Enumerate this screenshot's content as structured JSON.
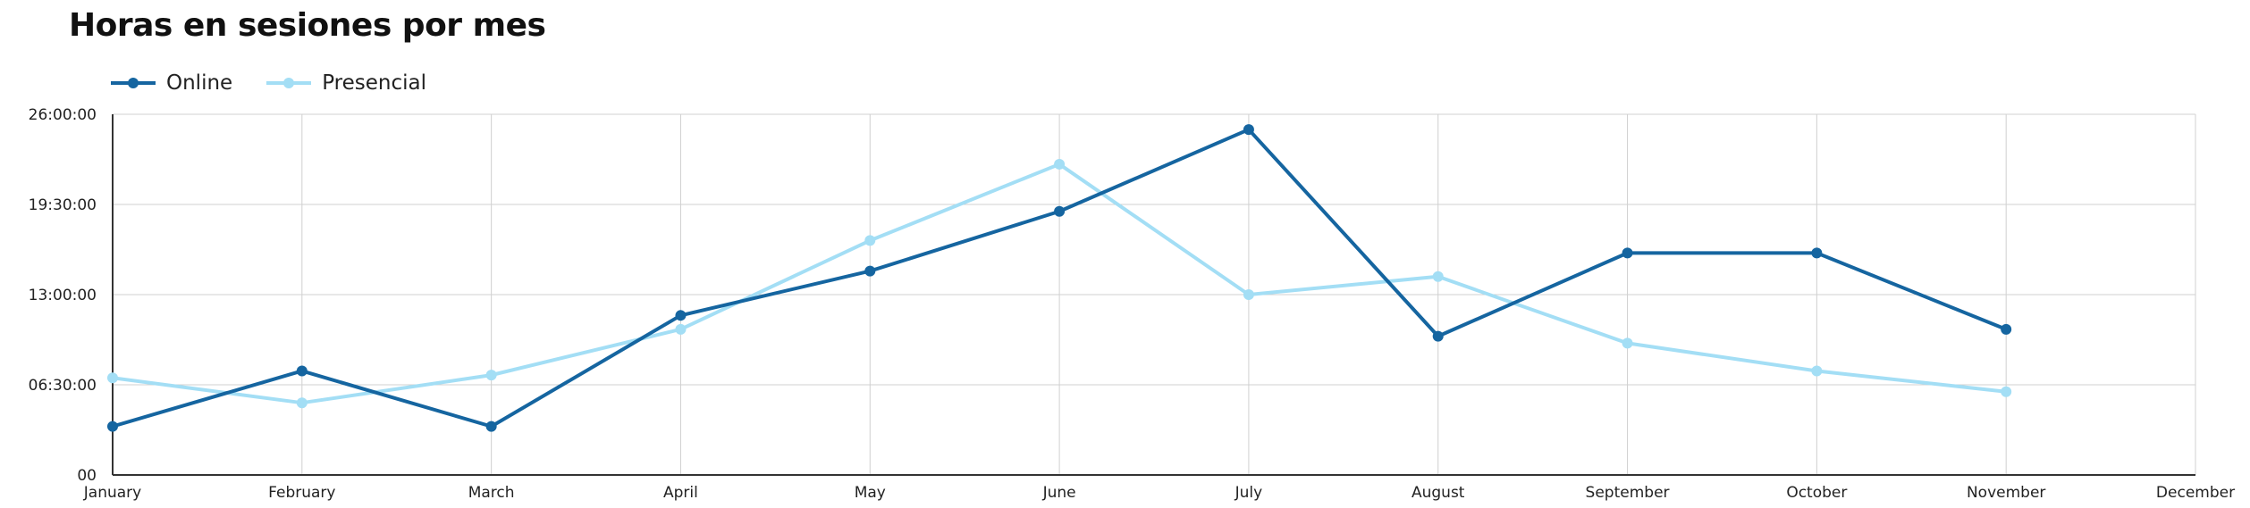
{
  "chart_data": {
    "type": "line",
    "title": "Horas en sesiones por mes",
    "xlabel": "",
    "ylabel": "",
    "categories": [
      "January",
      "February",
      "March",
      "April",
      "May",
      "June",
      "July",
      "August",
      "September",
      "October",
      "November",
      "December"
    ],
    "y_unit": "hours",
    "ylim": [
      0,
      26
    ],
    "yticks": [
      0,
      6.5,
      13,
      19.5,
      26
    ],
    "ytick_labels": [
      "00",
      "06:30:00",
      "13:00:00",
      "19:30:00",
      "26:00:00"
    ],
    "grid": true,
    "legend_position": "top-left",
    "series": [
      {
        "name": "Online",
        "color": "#1565a0",
        "values": [
          3.5,
          7.5,
          3.5,
          11.5,
          14.7,
          19.0,
          24.9,
          10.0,
          16.0,
          16.0,
          10.5,
          null
        ]
      },
      {
        "name": "Presencial",
        "color": "#a3def5",
        "values": [
          7.0,
          5.2,
          7.2,
          10.5,
          16.9,
          22.4,
          13.0,
          14.3,
          9.5,
          7.5,
          6.0,
          null
        ]
      }
    ]
  }
}
